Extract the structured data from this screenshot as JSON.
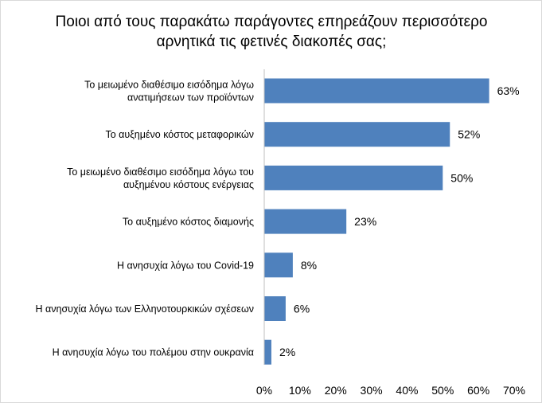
{
  "chart_data": {
    "type": "bar",
    "orientation": "horizontal",
    "title": "Ποιοι από τους παρακάτω παράγοντες επηρεάζουν περισσότερο αρνητικά τις φετινές διακοπές σας;",
    "categories": [
      "Το μειωμένο διαθέσιμο εισόδημα λόγω ανατιμήσεων των προϊόντων",
      "Το αυξημένο κόστος μεταφορικών",
      "Το μειωμένο διαθέσιμο εισόδημα λόγω του αυξημένου κόστους ενέργειας",
      "Το αυξημένο κόστος διαμονής",
      "Η ανησυχία λόγω του Covid-19",
      "Η ανησυχία λόγω των Ελληνοτουρκικών σχέσεων",
      "Η ανησυχία λόγω του πολέμου στην ουκρανία"
    ],
    "category_lines": [
      [
        "Το μειωμένο διαθέσιμο εισόδημα λόγω",
        "ανατιμήσεων των προϊόντων"
      ],
      [
        "Το αυξημένο κόστος μεταφορικών"
      ],
      [
        "Το μειωμένο διαθέσιμο εισόδημα λόγω του",
        "αυξημένου κόστους ενέργειας"
      ],
      [
        "Το αυξημένο κόστος διαμονής"
      ],
      [
        "Η ανησυχία λόγω του Covid-19"
      ],
      [
        "Η ανησυχία λόγω των Ελληνοτουρκικών σχέσεων"
      ],
      [
        "Η ανησυχία λόγω του πολέμου στην ουκρανία"
      ]
    ],
    "values": [
      63,
      52,
      50,
      23,
      8,
      6,
      2
    ],
    "value_labels": [
      "63%",
      "52%",
      "50%",
      "23%",
      "8%",
      "6%",
      "2%"
    ],
    "xlim": [
      0,
      70
    ],
    "x_ticks": [
      0,
      10,
      20,
      30,
      40,
      50,
      60,
      70
    ],
    "x_tick_labels": [
      "0%",
      "10%",
      "20%",
      "30%",
      "40%",
      "50%",
      "60%",
      "70%"
    ],
    "xlabel": "",
    "ylabel": "",
    "grid": false,
    "legend": "none",
    "bar_color": "#4f81bd",
    "axis_color": "#bfbfbf"
  }
}
